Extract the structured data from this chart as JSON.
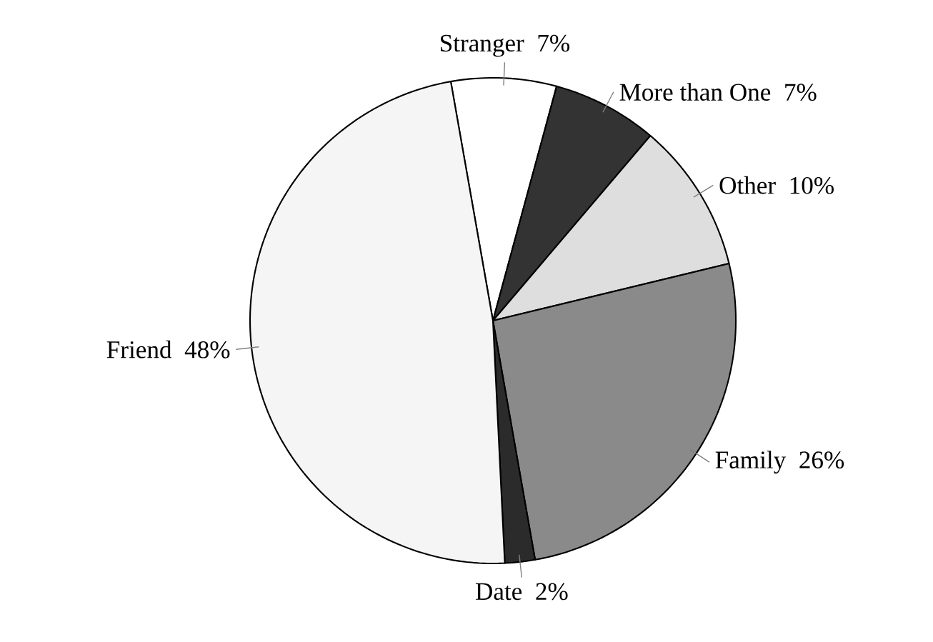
{
  "chart_data": {
    "type": "pie",
    "categories": [
      "Stranger",
      "More than One",
      "Other",
      "Family",
      "Date",
      "Friend"
    ],
    "values": [
      7,
      7,
      10,
      26,
      2,
      48
    ],
    "value_labels": [
      "7%",
      "7%",
      "10%",
      "26%",
      "2%",
      "48%"
    ],
    "colors": [
      "#ffffff",
      "#333333",
      "#dedede",
      "#8a8a8a",
      "#2b2b2b",
      "#f5f5f5"
    ]
  }
}
